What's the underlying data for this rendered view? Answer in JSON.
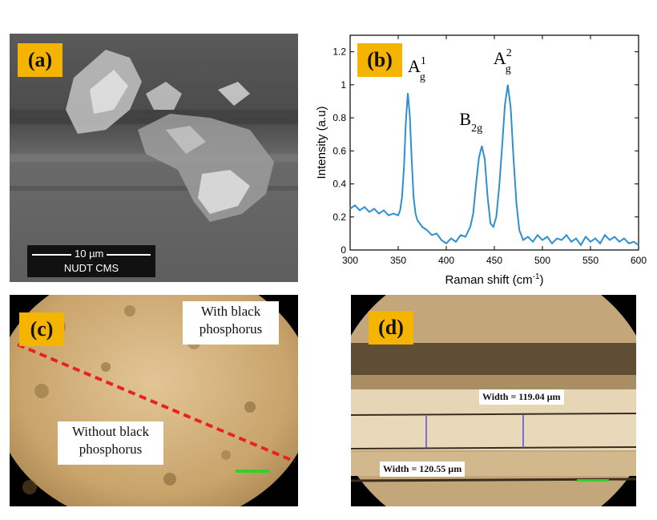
{
  "panels": {
    "a": {
      "label": "(a)",
      "scale_text": "10 µm",
      "lab_text": "NUDT CMS"
    },
    "b": {
      "label": "(b)"
    },
    "c": {
      "label": "(c)",
      "with_text_1": "With black",
      "with_text_2": "phosphorus",
      "without_text_1": "Without black",
      "without_text_2": "phosphorus"
    },
    "d": {
      "label": "(d)",
      "width_top": "Width = 119.04 µm",
      "width_bottom": "Width = 120.55 µm"
    }
  },
  "chart_data": {
    "type": "line",
    "xlabel": "Raman shift (cm",
    "xlabel_sup": "-1",
    "xlabel_tail": ")",
    "ylabel": "Intensity (a.u)",
    "xlim": [
      300,
      600
    ],
    "ylim": [
      0,
      1.3
    ],
    "xticks": [
      "300",
      "350",
      "400",
      "450",
      "500",
      "550",
      "600"
    ],
    "yticks": [
      "0",
      "0.2",
      "0.4",
      "0.6",
      "0.8",
      "1",
      "1.2"
    ],
    "color": "#2f8fd0",
    "peaks": [
      {
        "main": "A",
        "sub": "g",
        "sup": "1",
        "x": 360,
        "y": 0.95
      },
      {
        "main": "B",
        "sub": "2g",
        "sup": "",
        "x": 437,
        "y": 0.63
      },
      {
        "main": "A",
        "sub": "g",
        "sup": "2",
        "x": 464,
        "y": 1.0
      }
    ],
    "x": [
      300,
      305,
      310,
      315,
      320,
      325,
      330,
      335,
      340,
      345,
      350,
      352,
      354,
      356,
      358,
      360,
      362,
      364,
      366,
      368,
      370,
      375,
      380,
      385,
      390,
      395,
      400,
      405,
      410,
      415,
      420,
      425,
      428,
      431,
      434,
      437,
      440,
      443,
      446,
      449,
      452,
      455,
      458,
      461,
      464,
      467,
      470,
      473,
      476,
      480,
      485,
      490,
      495,
      500,
      505,
      510,
      515,
      520,
      525,
      530,
      535,
      540,
      545,
      550,
      555,
      560,
      565,
      570,
      575,
      580,
      585,
      590,
      595,
      600
    ],
    "y": [
      0.25,
      0.27,
      0.24,
      0.26,
      0.23,
      0.25,
      0.22,
      0.24,
      0.21,
      0.22,
      0.21,
      0.24,
      0.32,
      0.5,
      0.78,
      0.95,
      0.82,
      0.55,
      0.32,
      0.22,
      0.18,
      0.14,
      0.12,
      0.09,
      0.1,
      0.06,
      0.04,
      0.07,
      0.05,
      0.09,
      0.08,
      0.14,
      0.22,
      0.4,
      0.56,
      0.63,
      0.55,
      0.32,
      0.16,
      0.14,
      0.2,
      0.38,
      0.62,
      0.88,
      1.0,
      0.86,
      0.55,
      0.28,
      0.12,
      0.06,
      0.08,
      0.05,
      0.09,
      0.06,
      0.08,
      0.04,
      0.07,
      0.06,
      0.09,
      0.05,
      0.07,
      0.03,
      0.08,
      0.05,
      0.07,
      0.04,
      0.09,
      0.06,
      0.08,
      0.05,
      0.07,
      0.04,
      0.05,
      0.03
    ]
  }
}
